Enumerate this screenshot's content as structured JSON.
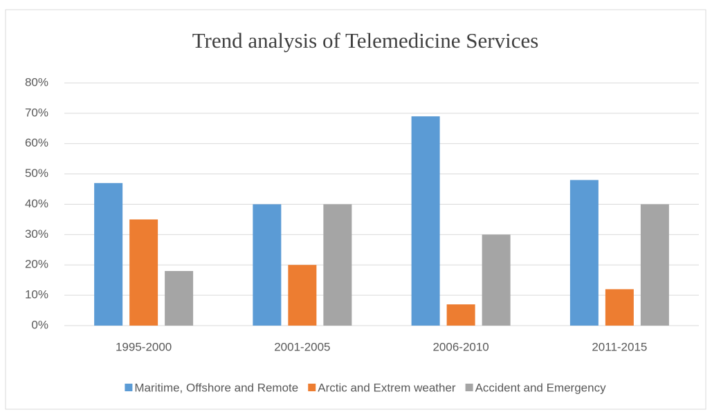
{
  "chart_data": {
    "type": "bar",
    "title": "Trend analysis of  Telemedicine Services",
    "categories": [
      "1995-2000",
      "2001-2005",
      "2006-2010",
      "2011-2015"
    ],
    "series": [
      {
        "name": "Maritime, Offshore and Remote",
        "color": "#5b9bd5",
        "values": [
          47,
          40,
          69,
          48
        ]
      },
      {
        "name": "Arctic and Extrem weather",
        "color": "#ed7d31",
        "values": [
          35,
          20,
          7,
          12
        ]
      },
      {
        "name": "Accident and Emergency",
        "color": "#a5a5a5",
        "values": [
          18,
          40,
          30,
          40
        ]
      }
    ],
    "ylim": [
      0,
      80
    ],
    "yticks": [
      {
        "value": 0,
        "label": "0%"
      },
      {
        "value": 10,
        "label": "10%"
      },
      {
        "value": 20,
        "label": "20%"
      },
      {
        "value": 30,
        "label": "30%"
      },
      {
        "value": 40,
        "label": "40%"
      },
      {
        "value": 50,
        "label": "50%"
      },
      {
        "value": 60,
        "label": "60%"
      },
      {
        "value": 70,
        "label": "70%"
      },
      {
        "value": 80,
        "label": "80%"
      }
    ],
    "grid": true,
    "legend": "bottom"
  }
}
